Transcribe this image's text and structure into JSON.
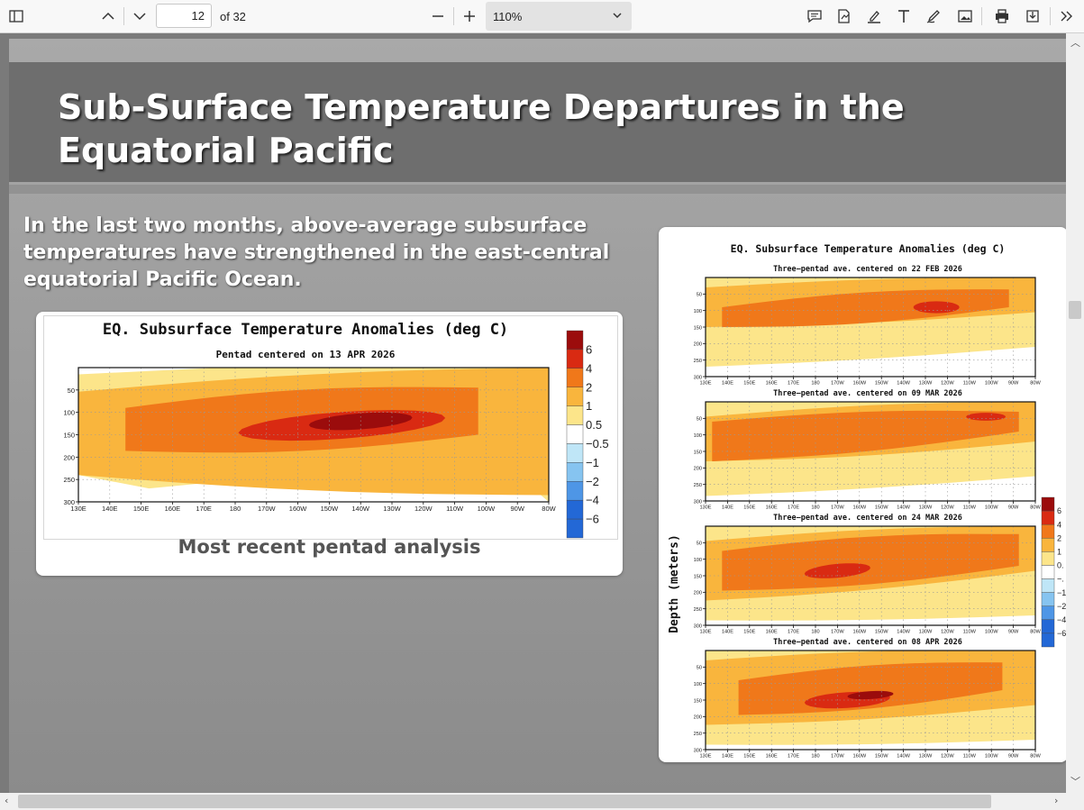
{
  "toolbar": {
    "page_number": "12",
    "page_total": "of 32",
    "zoom": "110%",
    "icons": [
      "sidebar-icon",
      "chevron-up-icon",
      "chevron-down-icon",
      "minus-icon",
      "plus-icon",
      "comment-icon",
      "sign-icon",
      "highlight-icon",
      "text-icon",
      "draw-icon",
      "image-icon",
      "print-icon",
      "save-icon",
      "more-icon"
    ]
  },
  "slide": {
    "title": "Sub-Surface Temperature Departures in the Equatorial Pacific",
    "body": "In the last two months, above-average subsurface temperatures have strengthened in the east-central equatorial Pacific Ocean.",
    "caption": "Most recent pentad analysis"
  },
  "colors": {
    "brown": "#9b0c0c",
    "red": "#d92a12",
    "orange": "#f0781a",
    "amber": "#f9b53d",
    "yellow": "#fce58a",
    "lightblue": "#bfe6f7",
    "blue1": "#86c4f0",
    "blue2": "#4e96e6",
    "blue3": "#2368d6"
  },
  "chart_data": [
    {
      "type": "heatmap",
      "title": "EQ. Subsurface Temperature Anomalies (deg C)",
      "subtitle": "Pentad centered on 13 APR 2026",
      "x_ticks": [
        "130E",
        "140E",
        "150E",
        "160E",
        "170E",
        "180",
        "170W",
        "160W",
        "150W",
        "140W",
        "130W",
        "120W",
        "110W",
        "100W",
        "90W",
        "80W"
      ],
      "y_ticks": [
        "50",
        "100",
        "150",
        "200",
        "250",
        "300"
      ],
      "colorbar_labels": [
        "6",
        "4",
        "2",
        "1",
        "0.5",
        "−0.5",
        "−1",
        "−2",
        "−4",
        "−6"
      ],
      "peak_anomaly_region": "150W-130W, 125-150 m"
    },
    {
      "type": "heatmap",
      "title": "EQ. Subsurface Temperature Anomalies (deg C)",
      "ylabel": "Depth (meters)",
      "panels": [
        "Three−pentad ave. centered on 22 FEB 2026",
        "Three−pentad ave. centered on 09 MAR 2026",
        "Three−pentad ave. centered on 24 MAR 2026",
        "Three−pentad ave. centered on 08 APR 2026"
      ],
      "x_ticks": [
        "130E",
        "140E",
        "150E",
        "160E",
        "170E",
        "180",
        "170W",
        "160W",
        "150W",
        "140W",
        "130W",
        "120W",
        "110W",
        "100W",
        "90W",
        "80W"
      ],
      "y_ticks": [
        "50",
        "100",
        "150",
        "200",
        "250",
        "300"
      ],
      "colorbar_labels": [
        "6",
        "4",
        "2",
        "1",
        "0.",
        "−.",
        "−1",
        "−2",
        "−4",
        "−6"
      ]
    }
  ]
}
